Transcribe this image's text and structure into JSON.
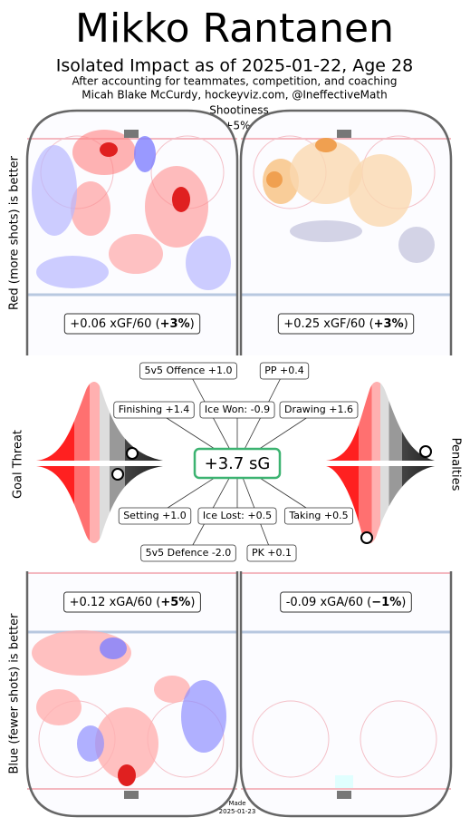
{
  "header": {
    "title": "Mikko Rantanen",
    "subtitle": "Isolated Impact as of 2025-01-22, Age 28",
    "lines": [
      "After accounting for teammates, competition, and coaching",
      "Micah Blake McCurdy, hockeyviz.com, @IneffectiveMath"
    ]
  },
  "shootiness": {
    "label": "Shootiness",
    "value": "+5%"
  },
  "side_labels": {
    "top": "Red (more shots) is better",
    "goal_threat": "Goal Threat",
    "penalties": "Penalties",
    "bottom": "Blue (fewer shots) is better"
  },
  "rinks": [
    {
      "prefix": "+0.06 xGF/60 (",
      "bold": "+3%",
      "suffix": ")"
    },
    {
      "prefix": "+0.25 xGF/60 (",
      "bold": "+3%",
      "suffix": ")"
    },
    {
      "prefix": "+0.12 xGA/60 (",
      "bold": "+5%",
      "suffix": ")"
    },
    {
      "prefix": "-0.09 xGA/60 (",
      "bold": "−1%",
      "suffix": ")"
    }
  ],
  "center": "+3.7 sG",
  "components": [
    "5v5 Offence +1.0",
    "PP +0.4",
    "Finishing +1.4",
    "Ice Won: -0.9",
    "Drawing +1.6",
    "Setting +1.0",
    "Ice Lost: +0.5",
    "Taking +0.5",
    "5v5 Defence -2.0",
    "PK +0.1"
  ],
  "footer": [
    "Made",
    "2025-01-23"
  ]
}
